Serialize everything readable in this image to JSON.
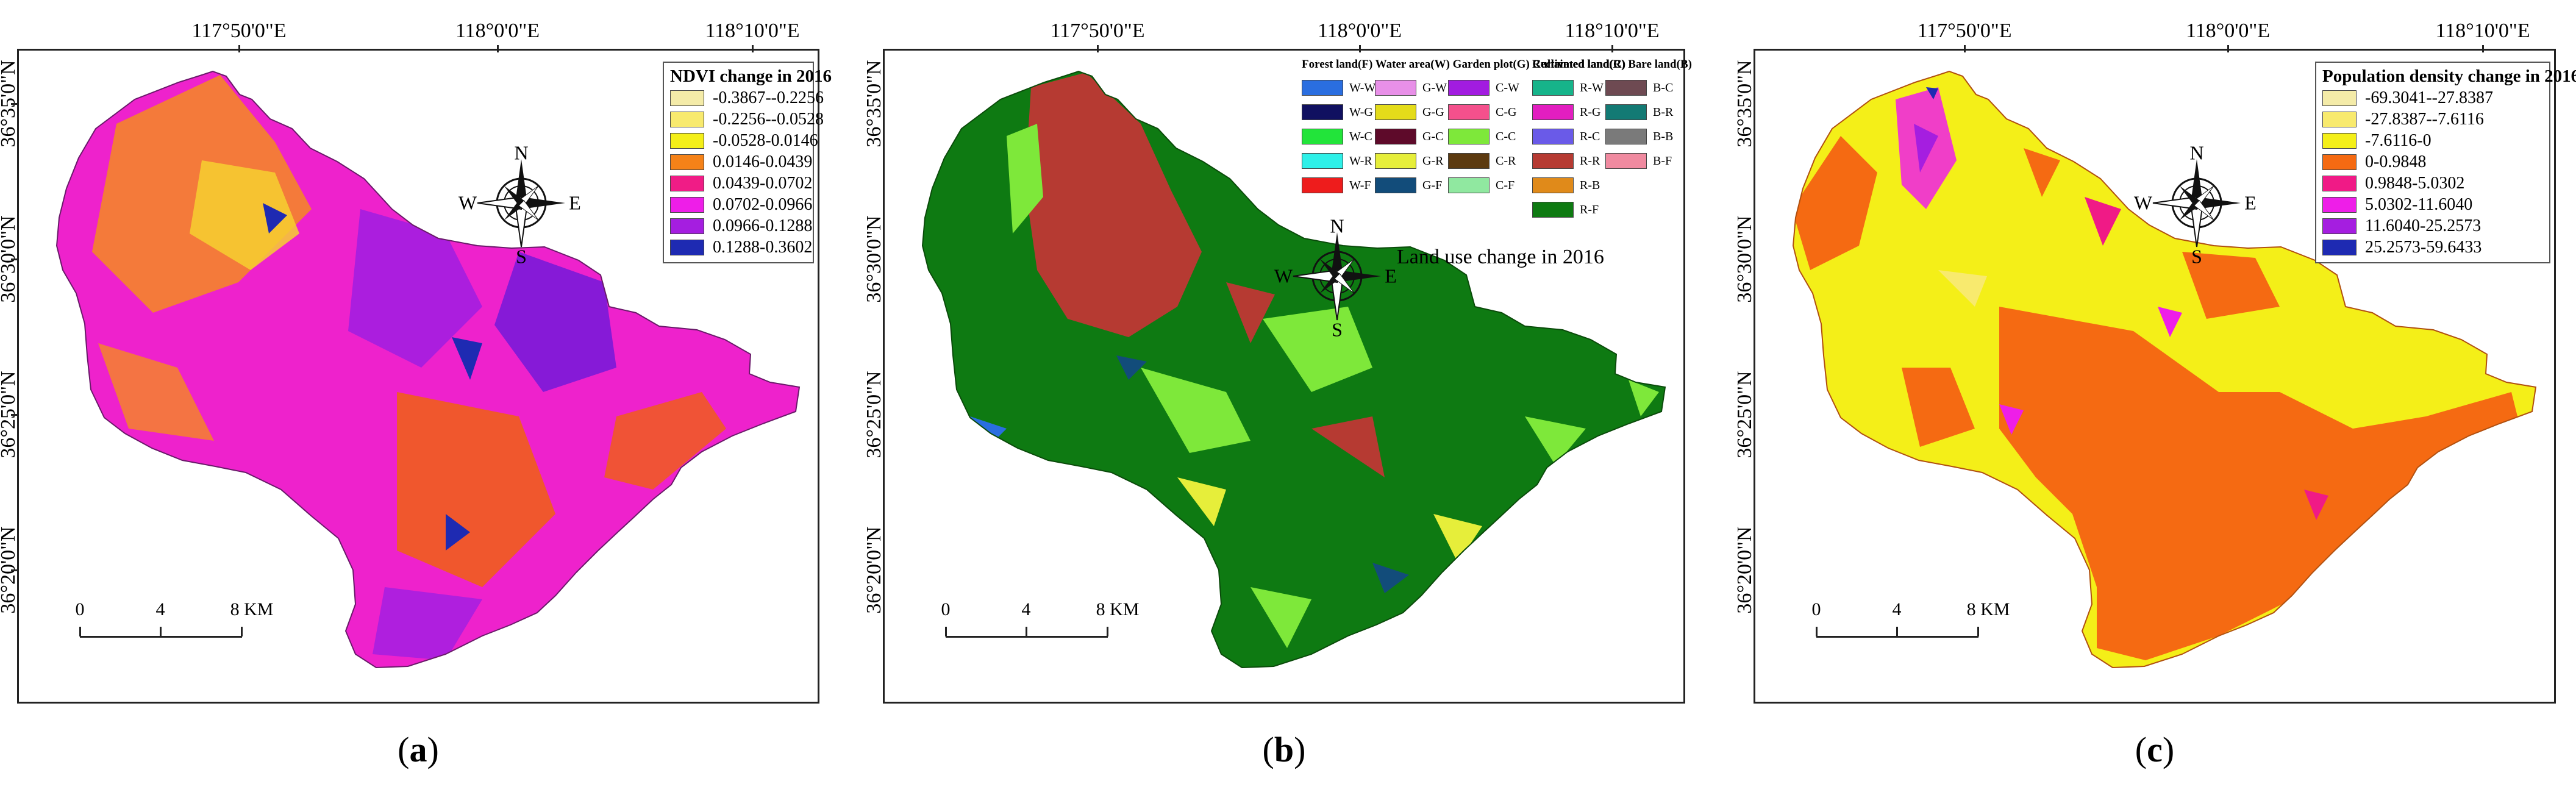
{
  "coordinates": {
    "longitudes": [
      "117°50'0\"E",
      "118°0'0\"E",
      "118°10'0\"E"
    ],
    "latitudes": [
      "36°35'0\"N",
      "36°30'0\"N",
      "36°25'0\"N",
      "36°20'0\"N"
    ]
  },
  "compass": {
    "n": "N",
    "s": "S",
    "e": "E",
    "w": "W"
  },
  "scale": {
    "labels": [
      "0",
      "4",
      "8 KM"
    ]
  },
  "panels": {
    "a": {
      "caption_open": "(",
      "caption_letter": "a",
      "caption_close": ")",
      "legend_title": "NDVI change in 2016",
      "legend": [
        {
          "label": "-0.3867--0.2256",
          "color": "#f4eba8"
        },
        {
          "label": "-0.2256--0.0528",
          "color": "#f8ea6e"
        },
        {
          "label": "-0.0528-0.0146",
          "color": "#f4ef18"
        },
        {
          "label": "0.0146-0.0439",
          "color": "#f58218"
        },
        {
          "label": "0.0439-0.0702",
          "color": "#f01c86"
        },
        {
          "label": "0.0702-0.0966",
          "color": "#ee1ee8"
        },
        {
          "label": "0.0966-0.1288",
          "color": "#a51ee0"
        },
        {
          "label": "0.1288-0.3602",
          "color": "#1e2ab2"
        }
      ]
    },
    "b": {
      "caption_open": "(",
      "caption_letter": "b",
      "caption_close": ")",
      "map_title": "Land use change in 2016",
      "legend_headers": [
        "Forest land(F) Water area(W) Garden plot(G) Cultivated land(C)",
        "Reclaimed land(R) Bare land(B)"
      ],
      "legend_columns": [
        [
          {
            "label": "W-W",
            "color": "#2a6ee0"
          },
          {
            "label": "W-G",
            "color": "#101060"
          },
          {
            "label": "W-C",
            "color": "#22e43a"
          },
          {
            "label": "W-R",
            "color": "#2ef0e8"
          },
          {
            "label": "W-F",
            "color": "#ee1c1c"
          }
        ],
        [
          {
            "label": "G-W",
            "color": "#e890e8"
          },
          {
            "label": "G-G",
            "color": "#e4dc1a"
          },
          {
            "label": "G-C",
            "color": "#5e0a2a"
          },
          {
            "label": "G-R",
            "color": "#e6ee3a"
          },
          {
            "label": "G-F",
            "color": "#124c7a"
          }
        ],
        [
          {
            "label": "C-W",
            "color": "#a21ce0"
          },
          {
            "label": "C-G",
            "color": "#f4508c"
          },
          {
            "label": "C-C",
            "color": "#7ee83a"
          },
          {
            "label": "C-R",
            "color": "#5c3a10"
          },
          {
            "label": "C-F",
            "color": "#90e8a0"
          }
        ],
        [
          {
            "label": "R-W",
            "color": "#16b48a"
          },
          {
            "label": "R-G",
            "color": "#e21ec0"
          },
          {
            "label": "R-C",
            "color": "#6a5ae8"
          },
          {
            "label": "R-R",
            "color": "#b63a32"
          },
          {
            "label": "R-B",
            "color": "#e08a1a"
          },
          {
            "label": "R-F",
            "color": "#0e7a12"
          }
        ],
        [
          {
            "label": "B-C",
            "color": "#6e4a52"
          },
          {
            "label": "B-R",
            "color": "#137a74"
          },
          {
            "label": "B-B",
            "color": "#7a7a7a"
          },
          {
            "label": "B-F",
            "color": "#f08aa0"
          }
        ]
      ]
    },
    "c": {
      "caption_open": "(",
      "caption_letter": "c",
      "caption_close": ")",
      "legend_title": "Population density change in 2016",
      "legend": [
        {
          "label": "-69.3041--27.8387",
          "color": "#f4eba8"
        },
        {
          "label": "-27.8387--7.6116",
          "color": "#f8ea6e"
        },
        {
          "label": "-7.6116-0",
          "color": "#f4ef18"
        },
        {
          "label": "0-0.9848",
          "color": "#f56a12"
        },
        {
          "label": "0.9848-5.0302",
          "color": "#f01a86"
        },
        {
          "label": "5.0302-11.6040",
          "color": "#ee1ee8"
        },
        {
          "label": "11.6040-25.2573",
          "color": "#a51ee0"
        },
        {
          "label": "25.2573-59.6433",
          "color": "#1e2ab2"
        }
      ]
    }
  }
}
